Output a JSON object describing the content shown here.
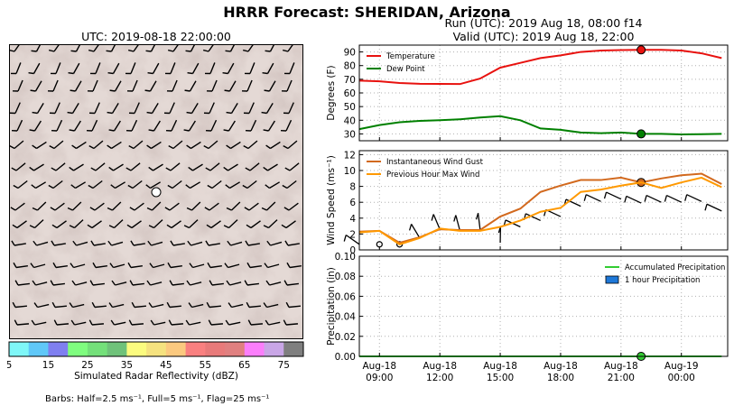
{
  "header": {
    "title": "HRRR Forecast: SHERIDAN, Arizona",
    "run": "Run (UTC): 2019 Aug 18, 08:00 f14",
    "valid": "Valid (UTC): 2019 Aug 18, 22:00"
  },
  "map": {
    "utc_label": "UTC: 2019-08-18 22:00:00",
    "colorbar_label": "Simulated Radar Reflectivity (dBZ)",
    "colorbar_ticks": [
      "5",
      "15",
      "25",
      "35",
      "45",
      "55",
      "65",
      "75"
    ],
    "colorbar_colors": [
      "#7ff7f8",
      "#60c8f8",
      "#7f7ff0",
      "#7ffd7f",
      "#74e07a",
      "#6fc27a",
      "#fbfb7f",
      "#f5e27f",
      "#fbc97f",
      "#f98080",
      "#e87a7a",
      "#e08080",
      "#fb7efb",
      "#c9a6e6",
      "#7f7f7f"
    ],
    "barb_note": "Barbs: Half=2.5 ms⁻¹, Full=5 ms⁻¹, Flag=25 ms⁻¹"
  },
  "chart_data": [
    {
      "type": "line",
      "ylabel": "Degrees (F)",
      "ylim": [
        25,
        95
      ],
      "yticks": [
        "30",
        "40",
        "50",
        "60",
        "70",
        "80",
        "90"
      ],
      "x": [
        8,
        9,
        10,
        11,
        12,
        13,
        14,
        15,
        16,
        17,
        18,
        19,
        20,
        21,
        22,
        23,
        24,
        25,
        26
      ],
      "series": [
        {
          "name": "Temperature",
          "color": "#e8120f",
          "values": [
            69,
            68.5,
            67.3,
            66.7,
            66.6,
            66.5,
            70.5,
            78.5,
            82,
            85.5,
            87.5,
            90,
            91,
            91.4,
            91.5,
            91.5,
            91,
            89,
            85.5
          ]
        },
        {
          "name": "Dew Point",
          "color": "#008000",
          "values": [
            33.5,
            36.5,
            38.5,
            39.5,
            40,
            40.7,
            42,
            43,
            40,
            34,
            33,
            31,
            30.5,
            31,
            30,
            30,
            29.6,
            29.8,
            30
          ]
        }
      ],
      "marker": {
        "x": 22,
        "values": [
          91.5,
          30
        ]
      },
      "legend": "top-left",
      "grid": true
    },
    {
      "type": "line",
      "ylabel": "Wind Speed (ms⁻¹)",
      "ylim": [
        0,
        12.5
      ],
      "yticks": [
        "0",
        "2",
        "4",
        "6",
        "8",
        "10",
        "12"
      ],
      "x": [
        8,
        9,
        10,
        11,
        12,
        13,
        14,
        15,
        16,
        17,
        18,
        19,
        20,
        21,
        22,
        23,
        24,
        25,
        26
      ],
      "series": [
        {
          "name": "Instantaneous Wind Gust",
          "color": "#d2691e",
          "values": [
            2.3,
            2.4,
            0.9,
            1.6,
            2.6,
            2.5,
            2.5,
            4.2,
            5.2,
            7.3,
            8.1,
            8.8,
            8.8,
            9.1,
            8.5,
            9.0,
            9.4,
            9.6,
            8.3
          ]
        },
        {
          "name": "Previous Hour Max Wind",
          "color": "#ff9900",
          "values": [
            2.2,
            2.4,
            0.7,
            1.5,
            2.7,
            2.4,
            2.4,
            2.9,
            3.7,
            4.8,
            5.3,
            7.3,
            7.6,
            8.1,
            8.5,
            7.8,
            8.5,
            9.1,
            7.9
          ]
        }
      ],
      "marker": {
        "x": 22,
        "values": [
          8.5
        ]
      },
      "barb_heights": [
        0.7,
        0.7,
        0.7,
        1.5,
        2.6,
        2.4,
        2.6,
        0.9,
        2.9,
        3.7,
        4.2,
        5.5,
        6.1,
        6.4,
        5.9,
        6.0,
        6.0,
        6.1,
        4.9
      ],
      "legend": "top-left",
      "grid": true
    },
    {
      "type": "line",
      "ylabel": "Precipitation (in)",
      "ylim": [
        0,
        0.1
      ],
      "yticks": [
        "0.00",
        "0.02",
        "0.04",
        "0.06",
        "0.08",
        "0.10"
      ],
      "x": [
        8,
        9,
        10,
        11,
        12,
        13,
        14,
        15,
        16,
        17,
        18,
        19,
        20,
        21,
        22,
        23,
        24,
        25,
        26
      ],
      "series": [
        {
          "name": "Accumulated Precipitation",
          "color": "#33cc33",
          "values": [
            0,
            0,
            0,
            0,
            0,
            0,
            0,
            0,
            0,
            0,
            0,
            0,
            0,
            0,
            0,
            0,
            0,
            0,
            0
          ]
        }
      ],
      "bars": {
        "name": "1 hour Precipitation",
        "color": "#1e78d8",
        "values": [
          0,
          0,
          0,
          0,
          0,
          0,
          0,
          0,
          0,
          0,
          0,
          0,
          0,
          0,
          0,
          0,
          0,
          0,
          0
        ]
      },
      "marker": {
        "x": 22,
        "values": [
          0
        ]
      },
      "legend": "top-right",
      "grid": true
    }
  ],
  "time_axis": {
    "range": [
      8,
      26.3
    ],
    "ticks": [
      {
        "x": 9,
        "line1": "Aug-18",
        "line2": "09:00"
      },
      {
        "x": 12,
        "line1": "Aug-18",
        "line2": "12:00"
      },
      {
        "x": 15,
        "line1": "Aug-18",
        "line2": "15:00"
      },
      {
        "x": 18,
        "line1": "Aug-18",
        "line2": "18:00"
      },
      {
        "x": 21,
        "line1": "Aug-18",
        "line2": "21:00"
      },
      {
        "x": 24,
        "line1": "Aug-19",
        "line2": "00:00"
      }
    ]
  }
}
